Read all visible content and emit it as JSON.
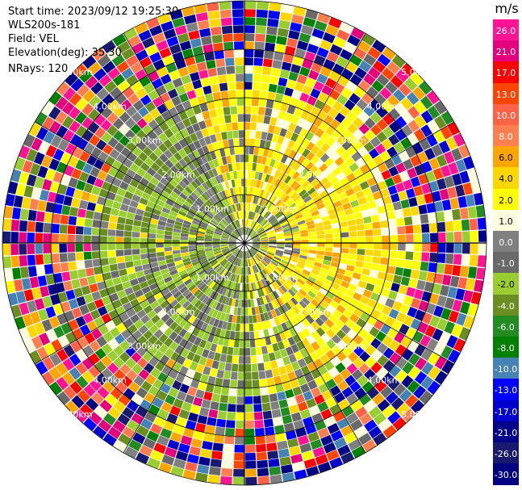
{
  "header": {
    "start_time": "Start time: 2023/09/12 19:25:30",
    "instrument": "WLS200s-181",
    "field": "Field: VEL",
    "elevation": "Elevation(deg): 35.30",
    "nrays": "NRays: 120"
  },
  "colorbar": {
    "unit": "m/s",
    "ticks": [
      "26.0",
      "21.0",
      "17.0",
      "13.0",
      "10.0",
      "8.0",
      "6.0",
      "4.0",
      "2.0",
      "1.0",
      "0.0",
      "-1.0",
      "-2.0",
      "-4.0",
      "-6.0",
      "-8.0",
      "-10.0",
      "-13.0",
      "-17.0",
      "-21.0",
      "-26.0",
      "-30.0"
    ],
    "colors": [
      "#ff1493",
      "#e4007c",
      "#ff0000",
      "#ff4500",
      "#ff6347",
      "#ff7f50",
      "#ffa500",
      "#ffd700",
      "#ffff00",
      "#ffffe0",
      "#808080",
      "#696969",
      "#9acd32",
      "#6b8e23",
      "#228b22",
      "#008000",
      "#4682b4",
      "#0000ff",
      "#0000cd",
      "#00008b",
      "#191970",
      "#000080"
    ]
  },
  "chart_data": {
    "type": "ppi",
    "nrays": 120,
    "ring_labels": [
      "1.00km",
      "2.00km",
      "3.00km",
      "4.00km",
      "5.00km"
    ]
  }
}
